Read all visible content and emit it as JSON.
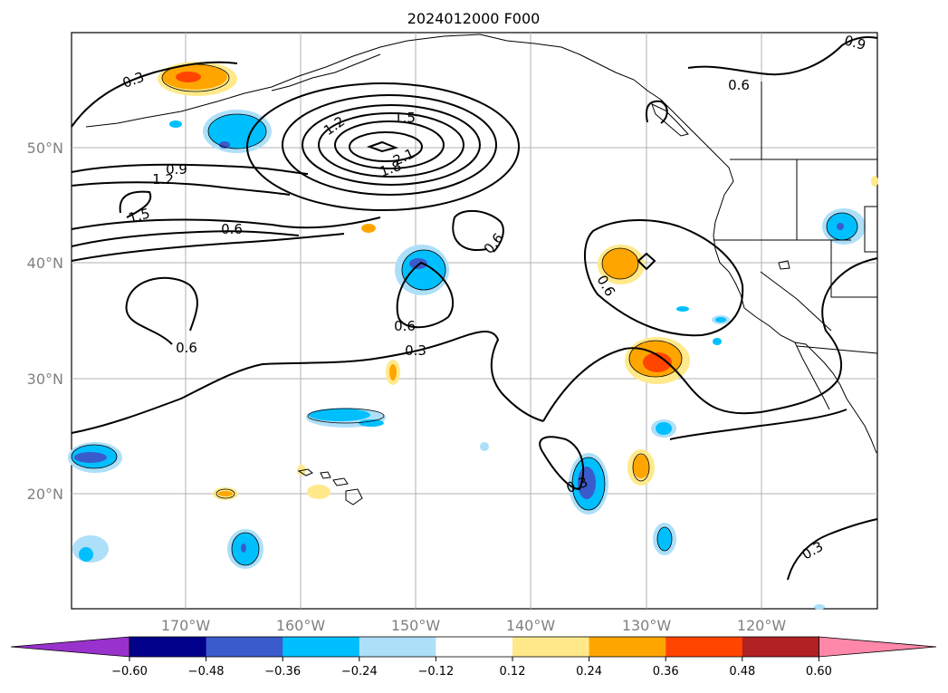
{
  "title": "2024012000 F000",
  "lat_ticks": [
    "50°N",
    "40°N",
    "30°N",
    "20°N"
  ],
  "lon_ticks": [
    "170°W",
    "160°W",
    "150°W",
    "140°W",
    "130°W",
    "120°W"
  ],
  "contour_labels": [
    "0.3",
    "0.9",
    "1.2",
    "1.5",
    "1.2",
    "1.5",
    "2.1",
    "1.8",
    "0.6",
    "0.6",
    "0.6",
    "0.6",
    "0.6",
    "0.3",
    "0.3",
    "0.3",
    "0.6",
    "0.9"
  ],
  "colorbar": {
    "labels": [
      "−0.60",
      "−0.48",
      "−0.36",
      "−0.24",
      "−0.12",
      "0.12",
      "0.24",
      "0.36",
      "0.48",
      "0.60"
    ],
    "colors": [
      "#9932CC",
      "#00008B",
      "#3A5BCB",
      "#00BFFF",
      "#ADDFF8",
      "#FFFFFF",
      "#FFE98A",
      "#FFA500",
      "#FF4500",
      "#B22222",
      "#FF88AA"
    ]
  }
}
